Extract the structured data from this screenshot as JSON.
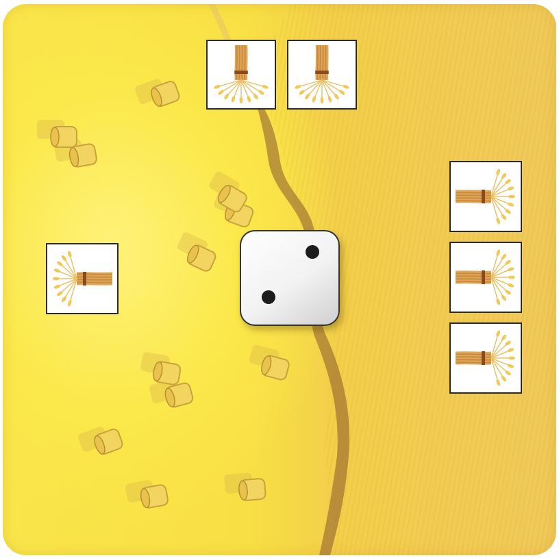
{
  "board": {
    "card_color": "#f9e64a",
    "path_color": "#8b5a2b",
    "tile_border_color": "#2a2a2a"
  },
  "die": {
    "face_value": 2,
    "icon": "die-face-two-icon"
  },
  "wheat_tiles": [
    {
      "icon": "wheat-sheaf-icon",
      "orientation": "up"
    },
    {
      "icon": "wheat-sheaf-icon",
      "orientation": "up"
    },
    {
      "icon": "wheat-sheaf-icon",
      "orientation": "left"
    },
    {
      "icon": "wheat-sheaf-icon",
      "orientation": "right"
    },
    {
      "icon": "wheat-sheaf-icon",
      "orientation": "right"
    },
    {
      "icon": "wheat-sheaf-icon",
      "orientation": "right"
    }
  ],
  "hay_bales": {
    "icon": "hay-bale-icon",
    "count": 12
  }
}
